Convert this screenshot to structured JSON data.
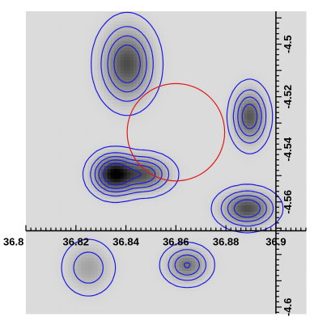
{
  "chart_data": {
    "type": "heatmap",
    "title": "",
    "xlabel": "",
    "ylabel": "",
    "xlim": [
      36.8,
      36.912
    ],
    "ylim": [
      -4.6025,
      -4.4875
    ],
    "x_axis_position_y": -4.571,
    "y_axis_position_x": 36.9,
    "x_ticks": [
      {
        "value": 36.8,
        "label": "36.8"
      },
      {
        "value": 36.82,
        "label": "36.82"
      },
      {
        "value": 36.84,
        "label": "36.84"
      },
      {
        "value": 36.86,
        "label": "36.86"
      },
      {
        "value": 36.88,
        "label": "36.88"
      },
      {
        "value": 36.9,
        "label": "36.9"
      }
    ],
    "y_ticks": [
      {
        "value": -4.5,
        "label": "-4.5"
      },
      {
        "value": -4.52,
        "label": "-4.52"
      },
      {
        "value": -4.54,
        "label": "-4.54"
      },
      {
        "value": -4.56,
        "label": "-4.56"
      },
      {
        "value": -4.6,
        "label": "-4.6"
      }
    ],
    "sources": [
      {
        "x": 36.8355,
        "y": -4.5495,
        "amplitude": 1.0,
        "sigma_x": 0.0045,
        "sigma_y": 0.0038
      },
      {
        "x": 36.847,
        "y": -4.5495,
        "amplitude": 0.55,
        "sigma_x": 0.0055,
        "sigma_y": 0.0035
      },
      {
        "x": 36.8405,
        "y": -4.5075,
        "amplitude": 0.6,
        "sigma_x": 0.0055,
        "sigma_y": 0.0075
      },
      {
        "x": 36.8895,
        "y": -4.5275,
        "amplitude": 0.55,
        "sigma_x": 0.0035,
        "sigma_y": 0.0055
      },
      {
        "x": 36.8885,
        "y": -4.5625,
        "amplitude": 0.6,
        "sigma_x": 0.0055,
        "sigma_y": 0.0035
      },
      {
        "x": 36.8645,
        "y": -4.584,
        "amplitude": 0.4,
        "sigma_x": 0.0045,
        "sigma_y": 0.0035
      },
      {
        "x": 36.825,
        "y": -4.585,
        "amplitude": 0.2,
        "sigma_x": 0.005,
        "sigma_y": 0.005
      }
    ],
    "background_level": 0.12,
    "contour_levels": [
      0.14,
      0.22,
      0.34,
      0.5,
      0.72
    ],
    "circle": {
      "center_x": 36.86,
      "center_y": -4.5335,
      "radius": 0.0195,
      "color": "#e01818"
    },
    "colormap": "grayscale (white low, black high)",
    "contour_color": "#1a1ae6",
    "grid": false
  }
}
